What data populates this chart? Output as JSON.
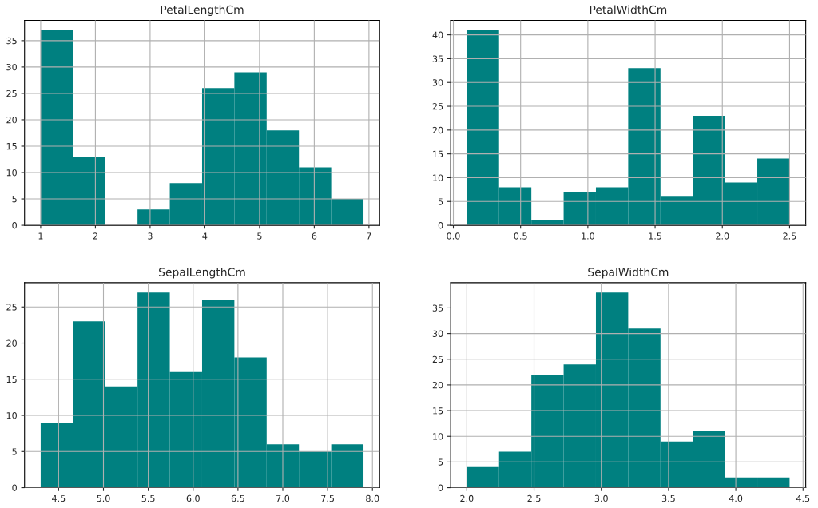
{
  "chart_data": [
    {
      "type": "histogram",
      "title": "PetalLengthCm",
      "color": "#008080",
      "grid": true,
      "bins": [
        1.0,
        1.59,
        2.18,
        2.77,
        3.36,
        3.95,
        4.54,
        5.13,
        5.72,
        6.31,
        6.9
      ],
      "values": [
        37,
        13,
        0,
        3,
        8,
        26,
        29,
        18,
        11,
        5
      ],
      "xlim": [
        0.705,
        7.195
      ],
      "xticks": [
        1,
        2,
        3,
        4,
        5,
        6,
        7
      ],
      "ylim": [
        0,
        38.85
      ],
      "yticks": [
        0,
        5,
        10,
        15,
        20,
        25,
        30,
        35
      ]
    },
    {
      "type": "histogram",
      "title": "PetalWidthCm",
      "color": "#008080",
      "grid": true,
      "bins": [
        0.1,
        0.34,
        0.58,
        0.82,
        1.06,
        1.3,
        1.54,
        1.78,
        2.02,
        2.26,
        2.5
      ],
      "values": [
        41,
        8,
        1,
        7,
        8,
        33,
        6,
        23,
        9,
        14
      ],
      "xlim": [
        -0.02,
        2.62
      ],
      "xticks": [
        {
          "value": 0,
          "label": "0.0"
        },
        0.5,
        {
          "value": 1,
          "label": "1.0"
        },
        1.5,
        {
          "value": 2,
          "label": "2.0"
        },
        2.5
      ],
      "ylim": [
        0,
        43.05
      ],
      "yticks": [
        0,
        5,
        10,
        15,
        20,
        25,
        30,
        35,
        40
      ]
    },
    {
      "type": "histogram",
      "title": "SepalLengthCm",
      "color": "#008080",
      "grid": true,
      "bins": [
        4.3,
        4.66,
        5.02,
        5.38,
        5.74,
        6.1,
        6.46,
        6.82,
        7.18,
        7.54,
        7.9
      ],
      "values": [
        9,
        23,
        14,
        27,
        16,
        26,
        18,
        6,
        5,
        6
      ],
      "xlim": [
        4.12,
        8.08
      ],
      "xticks": [
        4.5,
        {
          "value": 5,
          "label": "5.0"
        },
        5.5,
        {
          "value": 6,
          "label": "6.0"
        },
        6.5,
        {
          "value": 7,
          "label": "7.0"
        },
        7.5,
        {
          "value": 8,
          "label": "8.0"
        }
      ],
      "ylim": [
        0,
        28.35
      ],
      "yticks": [
        0,
        5,
        10,
        15,
        20,
        25
      ]
    },
    {
      "type": "histogram",
      "title": "SepalWidthCm",
      "color": "#008080",
      "grid": true,
      "bins": [
        2.0,
        2.24,
        2.48,
        2.72,
        2.96,
        3.2,
        3.44,
        3.68,
        3.92,
        4.16,
        4.4
      ],
      "values": [
        4,
        7,
        22,
        24,
        38,
        31,
        9,
        11,
        2,
        2
      ],
      "xlim": [
        1.88,
        4.52
      ],
      "xticks": [
        {
          "value": 2,
          "label": "2.0"
        },
        2.5,
        {
          "value": 3,
          "label": "3.0"
        },
        3.5,
        {
          "value": 4,
          "label": "4.0"
        },
        4.5
      ],
      "ylim": [
        0,
        39.9
      ],
      "yticks": [
        0,
        5,
        10,
        15,
        20,
        25,
        30,
        35
      ]
    }
  ]
}
